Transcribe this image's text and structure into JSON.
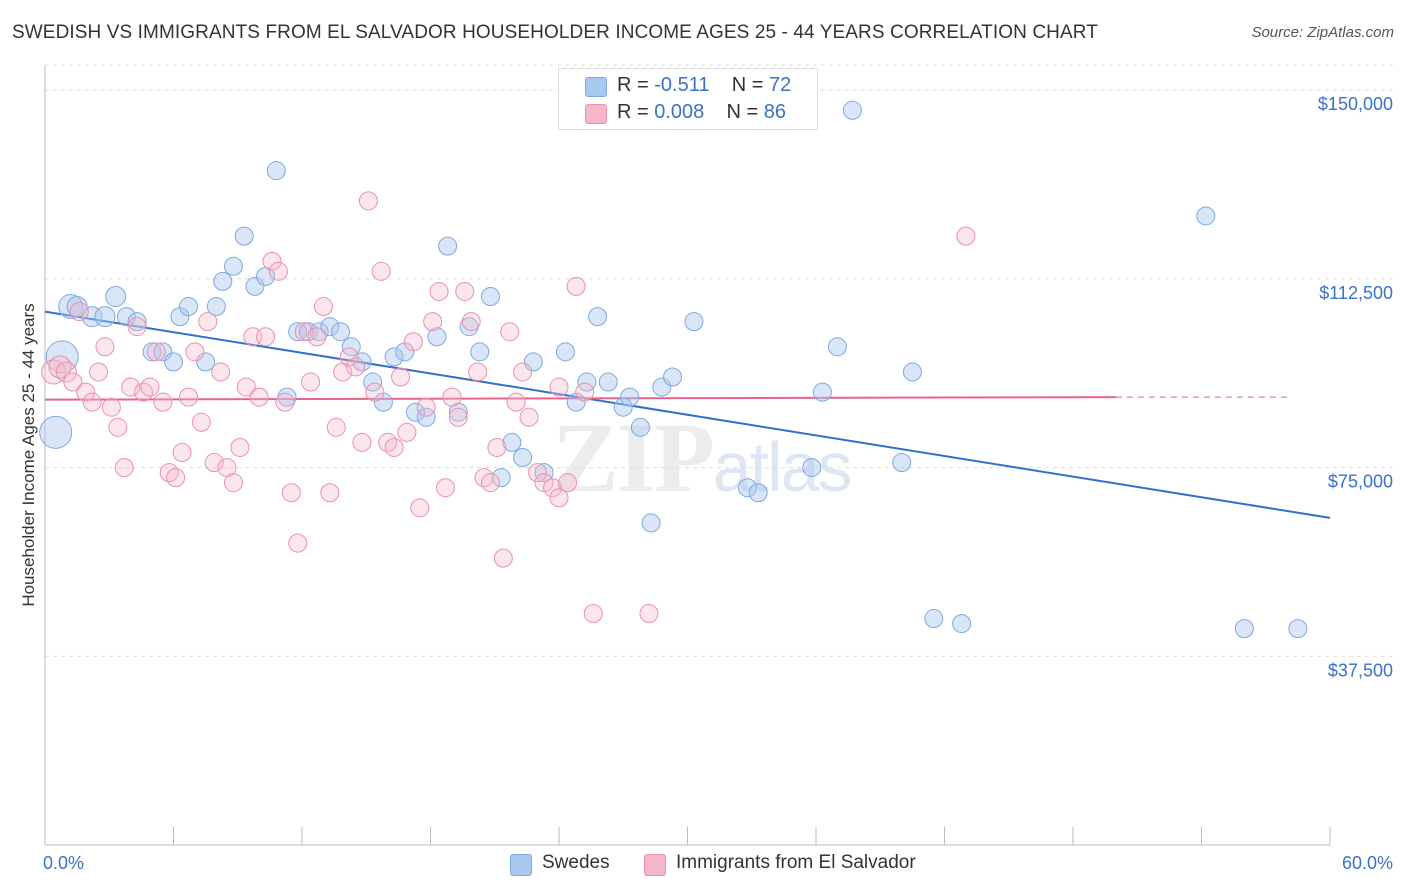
{
  "title": "SWEDISH VS IMMIGRANTS FROM EL SALVADOR HOUSEHOLDER INCOME AGES 25 - 44 YEARS CORRELATION CHART",
  "source": "Source: ZipAtlas.com",
  "watermark": {
    "zip": "ZIP",
    "atlas": "atlas"
  },
  "colors": {
    "blue": "#a9c8f0",
    "blue_line": "#2f6fce",
    "pink": "#f5b6cb",
    "pink_line": "#e8628f",
    "accent_text": "#3a72c8"
  },
  "legend": {
    "rows": [
      {
        "r_label": "R =",
        "r_value": "-0.511",
        "n_label": "N =",
        "n_value": "72"
      },
      {
        "r_label": "R =",
        "r_value": "0.008",
        "n_label": "N =",
        "n_value": "86"
      }
    ]
  },
  "chart_data": {
    "type": "scatter",
    "ylabel": "Householder Income Ages 25 - 44 years",
    "xlim": [
      0,
      60
    ],
    "ylim": [
      0,
      155000
    ],
    "x_tick_labels": [
      "0.0%",
      "60.0%"
    ],
    "y_ticks": [
      37500,
      75000,
      112500,
      150000
    ],
    "y_tick_labels": [
      "$37,500",
      "$75,000",
      "$112,500",
      "$150,000"
    ],
    "grid": true,
    "series": [
      {
        "name": "Swedes",
        "color": "#a9c8f0",
        "trend": {
          "x": [
            0,
            60
          ],
          "y": [
            106000,
            65000
          ],
          "dashed_from": null
        },
        "points": [
          [
            0.5,
            82000,
            16
          ],
          [
            0.8,
            97000,
            16
          ],
          [
            1.2,
            107000,
            12
          ],
          [
            1.5,
            107000,
            10
          ],
          [
            2.2,
            105000,
            10
          ],
          [
            2.8,
            105000,
            10
          ],
          [
            3.3,
            109000,
            10
          ],
          [
            3.8,
            105000,
            9
          ],
          [
            4.3,
            104000,
            9
          ],
          [
            5.0,
            98000,
            9
          ],
          [
            5.5,
            98000,
            9
          ],
          [
            6.0,
            96000,
            9
          ],
          [
            6.3,
            105000,
            9
          ],
          [
            6.7,
            107000,
            9
          ],
          [
            7.5,
            96000,
            9
          ],
          [
            8.0,
            107000,
            9
          ],
          [
            8.3,
            112000,
            9
          ],
          [
            8.8,
            115000,
            9
          ],
          [
            9.3,
            121000,
            9
          ],
          [
            9.8,
            111000,
            9
          ],
          [
            10.3,
            113000,
            9
          ],
          [
            10.8,
            134000,
            9
          ],
          [
            11.3,
            89000,
            9
          ],
          [
            11.8,
            102000,
            9
          ],
          [
            12.3,
            102000,
            9
          ],
          [
            12.8,
            102000,
            9
          ],
          [
            13.3,
            103000,
            9
          ],
          [
            13.8,
            102000,
            9
          ],
          [
            14.3,
            99000,
            9
          ],
          [
            14.8,
            96000,
            9
          ],
          [
            15.3,
            92000,
            9
          ],
          [
            15.8,
            88000,
            9
          ],
          [
            16.3,
            97000,
            9
          ],
          [
            16.8,
            98000,
            9
          ],
          [
            17.3,
            86000,
            9
          ],
          [
            17.8,
            85000,
            9
          ],
          [
            18.3,
            101000,
            9
          ],
          [
            18.8,
            119000,
            9
          ],
          [
            19.3,
            86000,
            9
          ],
          [
            19.8,
            103000,
            9
          ],
          [
            20.3,
            98000,
            9
          ],
          [
            20.8,
            109000,
            9
          ],
          [
            21.3,
            73000,
            9
          ],
          [
            21.8,
            80000,
            9
          ],
          [
            22.3,
            77000,
            9
          ],
          [
            22.8,
            96000,
            9
          ],
          [
            23.3,
            74000,
            9
          ],
          [
            24.3,
            98000,
            9
          ],
          [
            24.8,
            88000,
            9
          ],
          [
            25.3,
            92000,
            9
          ],
          [
            25.8,
            105000,
            9
          ],
          [
            26.3,
            92000,
            9
          ],
          [
            27.0,
            87000,
            9
          ],
          [
            27.3,
            89000,
            9
          ],
          [
            27.8,
            83000,
            9
          ],
          [
            28.3,
            64000,
            9
          ],
          [
            28.8,
            91000,
            9
          ],
          [
            29.3,
            93000,
            9
          ],
          [
            30.3,
            104000,
            9
          ],
          [
            32.8,
            71000,
            9
          ],
          [
            33.3,
            70000,
            9
          ],
          [
            35.8,
            75000,
            9
          ],
          [
            36.3,
            90000,
            9
          ],
          [
            37.0,
            99000,
            9
          ],
          [
            37.7,
            146000,
            9
          ],
          [
            40.0,
            76000,
            9
          ],
          [
            40.5,
            94000,
            9
          ],
          [
            41.5,
            45000,
            9
          ],
          [
            42.8,
            44000,
            9
          ],
          [
            54.2,
            125000,
            9
          ],
          [
            56.0,
            43000,
            9
          ],
          [
            58.5,
            43000,
            9
          ]
        ]
      },
      {
        "name": "Immigrants from El Salvador",
        "color": "#f5b6cb",
        "trend": {
          "x": [
            0,
            50
          ],
          "y": [
            88500,
            89000
          ],
          "dashed_from": 50,
          "dashed_to": 58
        },
        "points": [
          [
            0.4,
            94000,
            12
          ],
          [
            0.7,
            95000,
            11
          ],
          [
            1.0,
            94000,
            10
          ],
          [
            1.3,
            92000,
            9
          ],
          [
            1.6,
            106000,
            9
          ],
          [
            1.9,
            90000,
            9
          ],
          [
            2.2,
            88000,
            9
          ],
          [
            2.5,
            94000,
            9
          ],
          [
            2.8,
            99000,
            9
          ],
          [
            3.1,
            87000,
            9
          ],
          [
            3.4,
            83000,
            9
          ],
          [
            3.7,
            75000,
            9
          ],
          [
            4.0,
            91000,
            9
          ],
          [
            4.3,
            103000,
            9
          ],
          [
            4.6,
            90000,
            9
          ],
          [
            4.9,
            91000,
            9
          ],
          [
            5.2,
            98000,
            9
          ],
          [
            5.5,
            88000,
            9
          ],
          [
            5.8,
            74000,
            9
          ],
          [
            6.1,
            73000,
            9
          ],
          [
            6.4,
            78000,
            9
          ],
          [
            6.7,
            89000,
            9
          ],
          [
            7.0,
            98000,
            9
          ],
          [
            7.3,
            84000,
            9
          ],
          [
            7.6,
            104000,
            9
          ],
          [
            7.9,
            76000,
            9
          ],
          [
            8.2,
            94000,
            9
          ],
          [
            8.5,
            75000,
            9
          ],
          [
            8.8,
            72000,
            9
          ],
          [
            9.1,
            79000,
            9
          ],
          [
            9.4,
            91000,
            9
          ],
          [
            9.7,
            101000,
            9
          ],
          [
            10.0,
            89000,
            9
          ],
          [
            10.3,
            101000,
            9
          ],
          [
            10.6,
            116000,
            9
          ],
          [
            10.9,
            114000,
            9
          ],
          [
            11.2,
            88000,
            9
          ],
          [
            11.5,
            70000,
            9
          ],
          [
            11.8,
            60000,
            9
          ],
          [
            12.1,
            102000,
            9
          ],
          [
            12.4,
            92000,
            9
          ],
          [
            12.7,
            101000,
            9
          ],
          [
            13.0,
            107000,
            9
          ],
          [
            13.3,
            70000,
            9
          ],
          [
            13.6,
            83000,
            9
          ],
          [
            13.9,
            94000,
            9
          ],
          [
            14.2,
            97000,
            9
          ],
          [
            14.5,
            95000,
            9
          ],
          [
            14.8,
            80000,
            9
          ],
          [
            15.1,
            128000,
            9
          ],
          [
            15.4,
            90000,
            9
          ],
          [
            15.7,
            114000,
            9
          ],
          [
            16.0,
            80000,
            9
          ],
          [
            16.3,
            79000,
            9
          ],
          [
            16.6,
            93000,
            9
          ],
          [
            16.9,
            82000,
            9
          ],
          [
            17.2,
            100000,
            9
          ],
          [
            17.5,
            67000,
            9
          ],
          [
            17.8,
            87000,
            9
          ],
          [
            18.1,
            104000,
            9
          ],
          [
            18.4,
            110000,
            9
          ],
          [
            18.7,
            71000,
            9
          ],
          [
            19.0,
            89000,
            9
          ],
          [
            19.3,
            85000,
            9
          ],
          [
            19.6,
            110000,
            9
          ],
          [
            19.9,
            104000,
            9
          ],
          [
            20.2,
            94000,
            9
          ],
          [
            20.5,
            73000,
            9
          ],
          [
            20.8,
            72000,
            9
          ],
          [
            21.1,
            79000,
            9
          ],
          [
            21.4,
            57000,
            9
          ],
          [
            21.7,
            102000,
            9
          ],
          [
            22.0,
            88000,
            9
          ],
          [
            22.3,
            94000,
            9
          ],
          [
            22.6,
            85000,
            9
          ],
          [
            23.0,
            74000,
            9
          ],
          [
            23.3,
            72000,
            9
          ],
          [
            23.7,
            71000,
            9
          ],
          [
            24.0,
            91000,
            9
          ],
          [
            24.4,
            72000,
            9
          ],
          [
            24.8,
            111000,
            9
          ],
          [
            25.2,
            90000,
            9
          ],
          [
            25.6,
            46000,
            9
          ],
          [
            28.2,
            46000,
            9
          ],
          [
            43.0,
            121000,
            9
          ],
          [
            24.0,
            69000,
            9
          ]
        ]
      }
    ],
    "legend_placement": "bottom"
  }
}
